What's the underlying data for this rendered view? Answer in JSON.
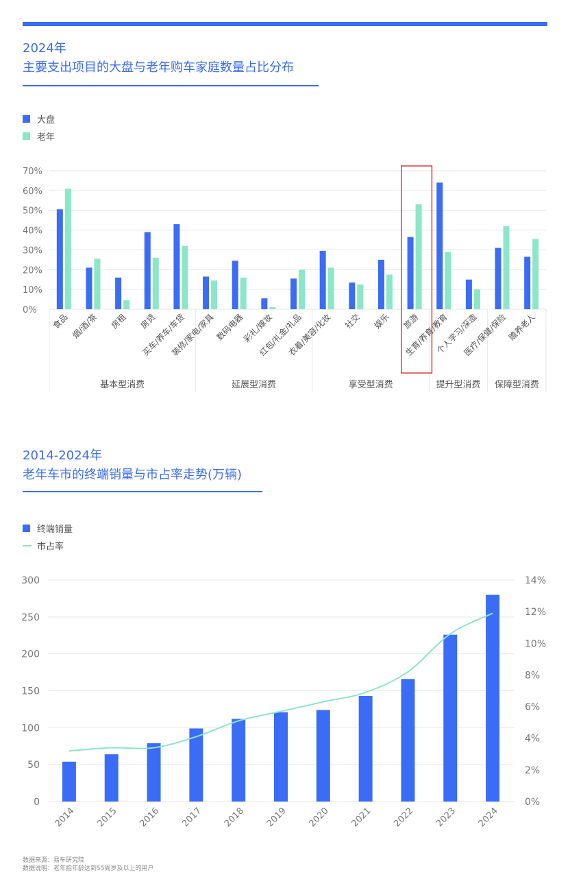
{
  "colors": {
    "accent": "#3b6cf6",
    "dapan": "#3b6cf6",
    "laonian": "#8ce6c8",
    "highlight": "#e03a3a"
  },
  "chart1": {
    "title_year": "2024年",
    "title": "主要支出项目的大盘与老年购车家庭数量占比分布",
    "legend": [
      "大盘",
      "老年"
    ]
  },
  "chart2": {
    "title_year": "2014-2024年",
    "title": "老年车市的终端销量与市占率走势(万辆)",
    "legend": [
      "终端销量",
      "市占率"
    ]
  },
  "footnotes": {
    "source": "数据来源：易车研究院",
    "note": "数据说明：老年指年龄达到55周岁及以上的用户"
  },
  "chart_data": [
    {
      "type": "bar",
      "title": "主要支出项目的大盘与老年购车家庭数量占比分布",
      "categories": [
        "食品",
        "烟/酒/茶",
        "房租",
        "房贷",
        "买车/养车/车贷",
        "装修/家电/家具",
        "数码电器",
        "彩礼/嫁妆",
        "红包/礼金/礼品",
        "衣着/美容/化妆",
        "社交",
        "娱乐",
        "旅游",
        "生育/养育/教育",
        "个人学习/深造",
        "医疗/保健/保险",
        "赡养老人"
      ],
      "groups": [
        {
          "label": "基本型消费",
          "span": [
            0,
            4
          ]
        },
        {
          "label": "延展型消费",
          "span": [
            5,
            8
          ]
        },
        {
          "label": "享受型消费",
          "span": [
            9,
            12
          ]
        },
        {
          "label": "提升型消费",
          "span": [
            13,
            14
          ]
        },
        {
          "label": "保障型消费",
          "span": [
            15,
            16
          ]
        }
      ],
      "series": [
        {
          "name": "大盘",
          "values": [
            50.5,
            21,
            16,
            39,
            43,
            16.5,
            24.5,
            5.5,
            15.5,
            29.5,
            13.5,
            25,
            36.5,
            64,
            15,
            31,
            26.5
          ]
        },
        {
          "name": "老年",
          "values": [
            61,
            25.5,
            4.5,
            26,
            32,
            14.5,
            16,
            1,
            20,
            21,
            12.5,
            17.5,
            53,
            29,
            10,
            42,
            35.5
          ]
        }
      ],
      "yticks": [
        "70%",
        "60%",
        "50%",
        "40%",
        "30%",
        "20%",
        "10%",
        "0%"
      ],
      "ylim": [
        0,
        70
      ],
      "highlight_category": "旅游",
      "grid": true,
      "legend_position": "top-left"
    },
    {
      "type": "bar+line",
      "title": "老年车市的终端销量与市占率走势(万辆)",
      "categories": [
        "2014",
        "2015",
        "2016",
        "2017",
        "2018",
        "2019",
        "2020",
        "2021",
        "2022",
        "2023",
        "2024"
      ],
      "series": [
        {
          "name": "终端销量",
          "type": "bar",
          "axis": "left",
          "values": [
            54,
            64,
            79,
            99,
            112,
            121,
            124,
            143,
            166,
            226,
            280
          ]
        },
        {
          "name": "市占率",
          "type": "line",
          "axis": "right",
          "values": [
            3.2,
            3.4,
            3.4,
            4.1,
            5.1,
            5.7,
            6.3,
            6.9,
            8.2,
            10.6,
            11.9
          ]
        }
      ],
      "yticks_left": [
        "300",
        "250",
        "200",
        "150",
        "100",
        "50",
        "0"
      ],
      "yticks_right": [
        "14%",
        "12%",
        "10%",
        "8%",
        "6%",
        "4%",
        "2%",
        "0%"
      ],
      "ylim_left": [
        0,
        300
      ],
      "ylim_right": [
        0,
        14
      ],
      "grid": true,
      "legend_position": "top-left"
    }
  ]
}
